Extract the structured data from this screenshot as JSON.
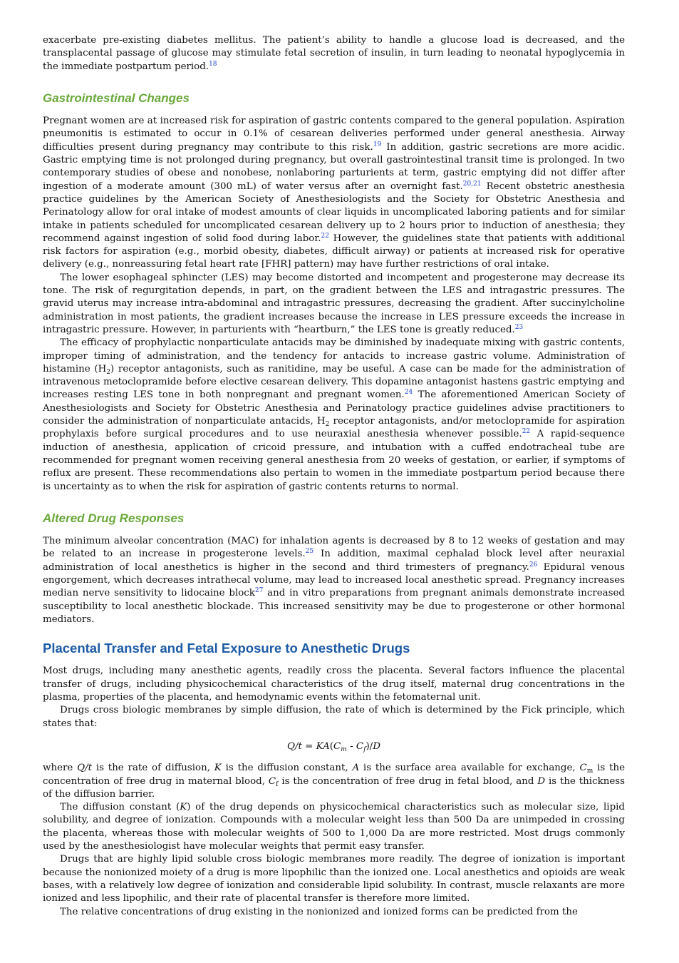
{
  "sections": [
    {
      "paragraphs": [
        [
          "exacerbate pre-existing diabetes mellitus. The patient’s ability to handle a glucose load is decreased, and the transplacental passage of glucose may stimulate fetal secretion of insulin, in turn leading to neonatal hypoglycemia in the immediate postpartum period.",
          {
            "sup": "18"
          }
        ]
      ]
    },
    {
      "heading": "Gastrointestinal Changes",
      "paragraphs": [
        [
          "Pregnant women are at increased risk for aspiration of gastric contents compared to the general population. Aspiration pneumonitis is estimated to occur in 0.1% of cesarean deliveries performed under general anesthesia. Airway difficulties present during pregnancy may contribute to this risk.",
          {
            "sup": "19"
          },
          " In addition, gastric secretions are more acidic. Gastric emptying time is not prolonged during pregnancy, but overall gastrointestinal transit time is prolonged. In two contemporary studies of obese and nonobese, nonlaboring parturients at term, gastric emptying did not differ after ingestion of a moderate amount (300 mL) of water versus after an overnight fast.",
          {
            "sup": "20,21"
          },
          " Recent obstetric anesthesia practice guidelines by the American Society of Anesthesiologists and the Society for Obstetric Anesthesia and Perinatology allow for oral intake of modest amounts of clear liquids in uncomplicated laboring patients and for similar intake in patients scheduled for uncomplicated cesarean delivery up to 2 hours prior to induction of anesthesia; they recommend against ingestion of solid food during labor.",
          {
            "sup": "22"
          },
          " However, the guidelines state that patients with additional risk factors for aspiration (e.g., morbid obesity, diabetes, difficult airway) or patients at increased risk for operative delivery (e.g., nonreassuring fetal heart rate [FHR] pattern) may have further restrictions of oral intake."
        ],
        [
          "The lower esophageal sphincter (LES) may become distorted and incompetent and progesterone may decrease its tone. The risk of regurgitation depends, in part, on the gradient between the LES and intragastric pressures. The gravid uterus may increase intra-abdominal and intragastric pressures, decreasing the gradient. After succinylcholine administration in most patients, the gradient increases because the increase in LES pressure exceeds the increase in intragastric pressure. However, in parturients with “heartburn,” the LES tone is greatly reduced.",
          {
            "sup": "23"
          }
        ],
        [
          "The efficacy of prophylactic nonparticulate antacids may be diminished by inadequate mixing with gastric contents, improper timing of administration, and the tendency for antacids to increase gastric volume. Administration of histamine (H",
          {
            "sub": "2"
          },
          ") receptor antagonists, such as ranitidine, may be useful. A case can be made for the administration of intravenous metoclopramide before elective cesarean delivery. This dopamine antagonist hastens gastric emptying and increases resting LES tone in both nonpregnant and pregnant women.",
          {
            "sup": "24"
          },
          " The aforementioned American Society of Anesthesiologists and Society for Obstetric Anesthesia and Perinatology practice guidelines advise practitioners to consider the administration of nonparticulate antacids, H",
          {
            "sub": "2"
          },
          " receptor antagonists, and/or metoclopramide for aspiration prophylaxis before surgical procedures and to use neuraxial anesthesia whenever possible.",
          {
            "sup": "22"
          },
          " A rapid-sequence induction of anesthesia, application of cricoid pressure, and intubation with a cuffed endotracheal tube are recommended for pregnant women receiving general anesthesia from 20 weeks of gestation, or earlier, if symptoms of reflux are present. These recommendations also pertain to women in the immediate postpartum period because there is uncertainty as to when the risk for aspiration of gastric contents returns to normal."
        ]
      ]
    },
    {
      "heading": "Altered Drug Responses",
      "paragraphs": [
        [
          "The minimum alveolar concentration (MAC) for inhalation agents is decreased by 8 to 12 weeks of gestation and may be related to an increase in progesterone levels.",
          {
            "sup": "25"
          },
          " In addition, maximal cephalad block level after neuraxial administration of local anesthetics is higher in the second and third trimesters of pregnancy.",
          {
            "sup": "26"
          },
          " Epidural venous engorgement, which decreases intrathecal volume, may lead to increased local anesthetic spread. Pregnancy increases median nerve sensitivity to lidocaine block",
          {
            "sup": "27"
          },
          " and in vitro preparations from pregnant animals demonstrate increased susceptibility to local anesthetic blockade. This increased sensitivity may be due to progesterone or other hormonal mediators."
        ]
      ]
    },
    {
      "major_heading": "Placental Transfer and Fetal Exposure to Anesthetic Drugs",
      "paragraphs": [
        [
          "Most drugs, including many anesthetic agents, readily cross the placenta. Several factors influence the placental transfer of drugs, including physicochemical characteristics of the drug itself, maternal drug concentrations in the plasma, properties of the placenta, and hemodynamic events within the fetomaternal unit."
        ],
        [
          "Drugs cross biologic membranes by simple diffusion, the rate of which is determined by the Fick principle, which states that:"
        ],
        {
          "equation": [
            {
              "i": "Q/t"
            },
            " = ",
            {
              "i": "KA"
            },
            "(",
            {
              "i": "C"
            },
            {
              "sub": "m"
            },
            " - ",
            {
              "i": "C"
            },
            {
              "sub": "f"
            },
            ")/",
            {
              "i": "D"
            }
          ]
        },
        [
          "where ",
          {
            "i": "Q/t"
          },
          " is the rate of diffusion, ",
          {
            "i": "K"
          },
          " is the diffusion constant, ",
          {
            "i": "A"
          },
          " is the surface area available for exchange, ",
          {
            "i": "C"
          },
          {
            "sub": "m"
          },
          " is the concentration of free drug in maternal blood, ",
          {
            "i": "C"
          },
          {
            "sub": "f"
          },
          " is the concentration of free drug in fetal blood, and ",
          {
            "i": "D"
          },
          " is the thickness of the diffusion barrier."
        ],
        [
          "The diffusion constant (",
          {
            "i": "K"
          },
          ") of the drug depends on physicochemical characteristics such as molecular size, lipid solubility, and degree of ionization. Compounds with a molecular weight less than 500 Da are unimpeded in crossing the placenta, whereas those with molecular weights of 500 to 1,000 Da are more restricted. Most drugs commonly used by the anesthesiologist have molecular weights that permit easy transfer."
        ],
        [
          "Drugs that are highly lipid soluble cross biologic membranes more readily. The degree of ionization is important because the nonionized moiety of a drug is more lipophilic than the ionized one. Local anesthetics and opioids are weak bases, with a relatively low degree of ionization and considerable lipid solubility. In contrast, muscle relaxants are more ionized and less lipophilic, and their rate of placental transfer is therefore more limited."
        ],
        [
          "The relative concentrations of drug existing in the nonionized and ionized forms can be predicted from the"
        ]
      ]
    }
  ]
}
